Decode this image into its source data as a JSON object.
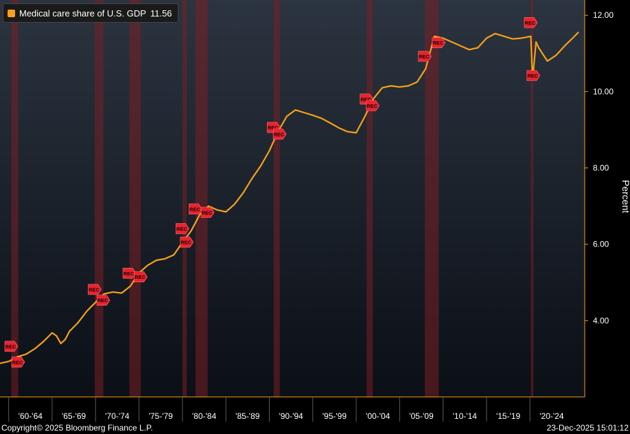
{
  "chart_data": {
    "type": "line",
    "legend": {
      "label": "Medical care share of U.S. GDP",
      "value": "11.56",
      "color": "#f7a11a"
    },
    "ylabel": "Percent",
    "ylim": [
      2.0,
      12.4
    ],
    "yticks": [
      {
        "value": 4,
        "label": "4.00"
      },
      {
        "value": 6,
        "label": "6.00"
      },
      {
        "value": 8,
        "label": "8.00"
      },
      {
        "value": 10,
        "label": "10.00"
      },
      {
        "value": 12,
        "label": "12.00"
      }
    ],
    "xlim": [
      1959.0,
      2026.3
    ],
    "xticks": [
      "'60-'64",
      "'65-'69",
      "'70-'74",
      "'75-'79",
      "'80-'84",
      "'85-'89",
      "'90-'94",
      "'95-'99",
      "'00-'04",
      "'05-'09",
      "'10-'14",
      "'15-'19",
      "'20-'24"
    ],
    "recessions": [
      {
        "start": 1960.3,
        "end": 1961.1
      },
      {
        "start": 1969.9,
        "end": 1970.9
      },
      {
        "start": 1973.9,
        "end": 1975.2
      },
      {
        "start": 1980.0,
        "end": 1980.5
      },
      {
        "start": 1981.5,
        "end": 1982.9
      },
      {
        "start": 1990.5,
        "end": 1991.2
      },
      {
        "start": 2001.2,
        "end": 2001.9
      },
      {
        "start": 2007.9,
        "end": 2009.5
      },
      {
        "start": 2020.1,
        "end": 2020.4
      }
    ],
    "rec_label": "REC",
    "series": [
      {
        "name": "Medical care share of U.S. GDP",
        "color": "#f7a11a",
        "points": [
          [
            1959.0,
            2.88
          ],
          [
            1960.0,
            2.93
          ],
          [
            1961.0,
            3.05
          ],
          [
            1962.0,
            3.12
          ],
          [
            1963.0,
            3.26
          ],
          [
            1964.0,
            3.45
          ],
          [
            1965.0,
            3.68
          ],
          [
            1965.5,
            3.6
          ],
          [
            1966.0,
            3.4
          ],
          [
            1966.5,
            3.5
          ],
          [
            1967.0,
            3.72
          ],
          [
            1968.0,
            3.95
          ],
          [
            1969.0,
            4.25
          ],
          [
            1970.0,
            4.48
          ],
          [
            1971.0,
            4.7
          ],
          [
            1972.0,
            4.75
          ],
          [
            1973.0,
            4.72
          ],
          [
            1974.0,
            4.9
          ],
          [
            1975.0,
            5.25
          ],
          [
            1976.0,
            5.45
          ],
          [
            1977.0,
            5.58
          ],
          [
            1978.0,
            5.62
          ],
          [
            1979.0,
            5.72
          ],
          [
            1980.0,
            6.05
          ],
          [
            1981.0,
            6.35
          ],
          [
            1982.0,
            6.78
          ],
          [
            1983.0,
            7.0
          ],
          [
            1984.0,
            6.9
          ],
          [
            1985.0,
            6.85
          ],
          [
            1986.0,
            7.05
          ],
          [
            1987.0,
            7.35
          ],
          [
            1988.0,
            7.72
          ],
          [
            1989.0,
            8.05
          ],
          [
            1990.0,
            8.45
          ],
          [
            1991.0,
            8.95
          ],
          [
            1992.0,
            9.35
          ],
          [
            1993.0,
            9.52
          ],
          [
            1994.0,
            9.45
          ],
          [
            1995.0,
            9.38
          ],
          [
            1996.0,
            9.3
          ],
          [
            1997.0,
            9.18
          ],
          [
            1998.0,
            9.05
          ],
          [
            1999.0,
            8.95
          ],
          [
            2000.0,
            8.92
          ],
          [
            2001.0,
            9.35
          ],
          [
            2002.0,
            9.82
          ],
          [
            2003.0,
            10.1
          ],
          [
            2004.0,
            10.15
          ],
          [
            2005.0,
            10.12
          ],
          [
            2006.0,
            10.15
          ],
          [
            2007.0,
            10.25
          ],
          [
            2008.0,
            10.6
          ],
          [
            2009.0,
            11.45
          ],
          [
            2010.0,
            11.4
          ],
          [
            2011.0,
            11.3
          ],
          [
            2012.0,
            11.2
          ],
          [
            2013.0,
            11.1
          ],
          [
            2014.0,
            11.15
          ],
          [
            2015.0,
            11.4
          ],
          [
            2016.0,
            11.52
          ],
          [
            2017.0,
            11.45
          ],
          [
            2018.0,
            11.38
          ],
          [
            2019.0,
            11.4
          ],
          [
            2020.1,
            11.45
          ],
          [
            2020.3,
            10.32
          ],
          [
            2020.7,
            11.3
          ],
          [
            2021.0,
            11.15
          ],
          [
            2022.0,
            10.8
          ],
          [
            2023.0,
            10.95
          ],
          [
            2024.0,
            11.2
          ],
          [
            2025.0,
            11.42
          ],
          [
            2025.6,
            11.56
          ]
        ]
      }
    ]
  },
  "footer": {
    "copyright": "Copyright© 2025 Bloomberg Finance L.P.",
    "timestamp": "23-Dec-2025 15:01:12"
  }
}
